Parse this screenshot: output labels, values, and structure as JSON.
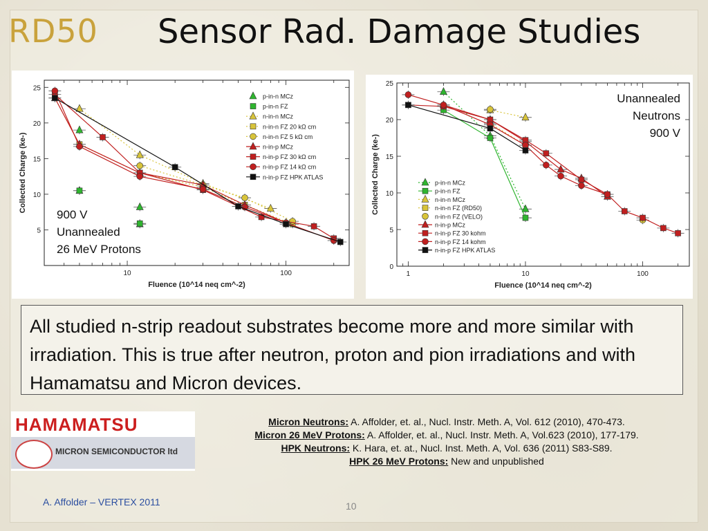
{
  "header": {
    "logo": "RD50",
    "title": "Sensor Rad. Damage Studies"
  },
  "body_text": "All studied n-strip readout substrates become more and more similar with irradiation.   This is true after neutron, proton and pion irradiations and with Hamamatsu and Micron devices.",
  "logos": {
    "hamamatsu": "HAMAMATSU",
    "micron": "MICRON SEMICONDUCTOR ltd"
  },
  "references": [
    {
      "label": "Micron Neutrons:",
      "text": " A. Affolder, et. al., Nucl. Instr. Meth. A, Vol. 612 (2010), 470-473."
    },
    {
      "label": "Micron 26 MeV Protons:",
      "text": " A. Affolder, et. al., Nucl. Instr. Meth. A, Vol.623 (2010), 177-179."
    },
    {
      "label": "HPK Neutrons:",
      "text": "  K. Hara, et. at., Nucl. Inst. Meth. A, Vol. 636 (2011) S83-S89."
    },
    {
      "label": "HPK 26 MeV Protons:",
      "text": "  New and unpublished"
    }
  ],
  "footer": {
    "author": "A. Affolder – VERTEX 2011",
    "page": "10"
  },
  "chart_data": [
    {
      "type": "line",
      "xlabel": "Fluence (10^14 neq cm^-2)",
      "ylabel": "Collected Charge (ke-)",
      "xscale": "log",
      "xlim": [
        3,
        250
      ],
      "ylim": [
        0,
        26
      ],
      "xticks": [
        10,
        100
      ],
      "yticks": [
        5,
        10,
        15,
        20,
        25
      ],
      "annotation": [
        "900 V",
        "Unannealed",
        "26 MeV Protons"
      ],
      "legend_position": "top-right",
      "series": [
        {
          "name": "p-in-n MCz",
          "color": "#2fb52f",
          "marker": "triangle",
          "line": "none",
          "x": [
            5,
            5,
            12,
            12
          ],
          "y": [
            19,
            10.5,
            8.2,
            5.8
          ]
        },
        {
          "name": "p-in-n FZ",
          "color": "#2fb52f",
          "marker": "square",
          "line": "none",
          "x": [
            5,
            12
          ],
          "y": [
            10.5,
            5.9
          ]
        },
        {
          "name": "n-in-n MCz",
          "color": "#d8c43a",
          "marker": "triangle",
          "line": "dotted",
          "x": [
            5,
            12,
            30,
            80
          ],
          "y": [
            22,
            15.5,
            11.5,
            8
          ]
        },
        {
          "name": "n-in-n FZ 20 kΩ cm",
          "color": "#d8c43a",
          "marker": "square",
          "line": "dotted",
          "x": [
            3.5,
            5,
            12,
            30,
            55,
            110
          ],
          "y": [
            23.5,
            17,
            13,
            11,
            8.5,
            5.8
          ]
        },
        {
          "name": "n-in-n FZ 5 kΩ cm",
          "color": "#d8c43a",
          "marker": "circle",
          "line": "dotted",
          "x": [
            12,
            30,
            55,
            110
          ],
          "y": [
            14,
            11.3,
            9.5,
            6.2
          ]
        },
        {
          "name": "n-in-p MCz",
          "color": "#c01f1f",
          "marker": "triangle",
          "line": "solid",
          "x": [
            3.5,
            5,
            12,
            30,
            55,
            100
          ],
          "y": [
            23.5,
            17,
            13,
            11.3,
            8.5,
            6
          ]
        },
        {
          "name": "n-in-p FZ 30 kΩ cm",
          "color": "#c01f1f",
          "marker": "square",
          "line": "solid",
          "x": [
            3.5,
            7,
            12,
            30,
            70,
            150,
            200
          ],
          "y": [
            24,
            18,
            13,
            10.6,
            6.8,
            5.5,
            3.8
          ]
        },
        {
          "name": "n-in-p FZ 14 kΩ cm",
          "color": "#c01f1f",
          "marker": "circle",
          "line": "solid",
          "x": [
            3.5,
            5,
            12,
            30,
            55,
            100,
            200
          ],
          "y": [
            24.5,
            16.7,
            12.5,
            10.7,
            8.2,
            6,
            3.5
          ]
        },
        {
          "name": "n-in-p FZ HPK ATLAS",
          "color": "#111111",
          "marker": "square",
          "line": "solid",
          "x": [
            3.5,
            20,
            50,
            100,
            220
          ],
          "y": [
            23.5,
            13.8,
            8.3,
            5.8,
            3.3
          ]
        }
      ]
    },
    {
      "type": "line",
      "xlabel": "Fluence (10^14 neq cm^-2)",
      "ylabel": "Collected Charge (ke-)",
      "xscale": "log",
      "xlim": [
        0.8,
        250
      ],
      "ylim": [
        0,
        25
      ],
      "xticks": [
        1,
        10,
        100
      ],
      "yticks": [
        0,
        5,
        10,
        15,
        20,
        25
      ],
      "annotation": [
        "Unannealed",
        "Neutrons",
        "900 V"
      ],
      "legend_position": "bottom-left",
      "series": [
        {
          "name": "p-in-n MCz",
          "color": "#2fb52f",
          "marker": "triangle",
          "line": "dotted",
          "x": [
            2,
            5,
            10
          ],
          "y": [
            23.8,
            17.8,
            7.8
          ]
        },
        {
          "name": "p-in-n FZ",
          "color": "#2fb52f",
          "marker": "square",
          "line": "solid",
          "x": [
            2,
            5,
            10
          ],
          "y": [
            21.3,
            17.5,
            6.6
          ]
        },
        {
          "name": "n-in-n MCz",
          "color": "#d8c43a",
          "marker": "triangle",
          "line": "dotted",
          "x": [
            5,
            10
          ],
          "y": [
            21.3,
            20.3
          ]
        },
        {
          "name": "n-in-n FZ (RD50)",
          "color": "#d8c43a",
          "marker": "square",
          "line": "dotted",
          "x": [
            5,
            10
          ],
          "y": [
            19.5,
            16.5
          ]
        },
        {
          "name": "n-in-n FZ (VELO)",
          "color": "#d8c43a",
          "marker": "circle",
          "line": "none",
          "x": [
            5,
            100
          ],
          "y": [
            21.4,
            6.3
          ]
        },
        {
          "name": "n-in-p MCz",
          "color": "#c01f1f",
          "marker": "triangle",
          "line": "solid",
          "x": [
            2,
            5,
            10,
            20,
            30,
            50
          ],
          "y": [
            22,
            20,
            17,
            13.2,
            12,
            9.5
          ]
        },
        {
          "name": "n-in-p FZ 30 kohm",
          "color": "#c01f1f",
          "marker": "square",
          "line": "solid",
          "x": [
            1,
            2,
            5,
            10,
            15,
            30,
            50,
            70,
            100,
            150,
            200
          ],
          "y": [
            22,
            21.8,
            20,
            17.2,
            15.4,
            11.8,
            9.8,
            7.5,
            6.6,
            5.2,
            4.5
          ]
        },
        {
          "name": "n-in-p FZ 14 kohm",
          "color": "#c01f1f",
          "marker": "circle",
          "line": "solid",
          "x": [
            1,
            2,
            5,
            10,
            15,
            20,
            30,
            50
          ],
          "y": [
            23.4,
            22,
            19.3,
            16.5,
            13.8,
            12.3,
            11,
            9.8
          ]
        },
        {
          "name": "n-in-p FZ HPK ATLAS",
          "color": "#111111",
          "marker": "square",
          "line": "solid",
          "x": [
            1,
            5,
            10
          ],
          "y": [
            22,
            18.8,
            15.8
          ]
        }
      ]
    }
  ]
}
